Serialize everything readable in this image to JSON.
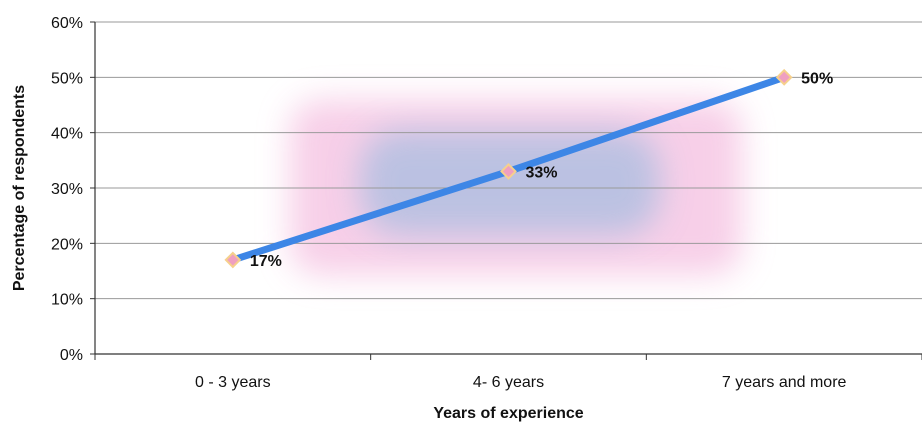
{
  "chart_data": {
    "type": "line",
    "categories": [
      "0 - 3 years",
      "4- 6 years",
      "7 years and more"
    ],
    "series": [
      {
        "values": [
          17,
          33,
          50
        ],
        "labels": [
          "17%",
          "33%",
          "50%"
        ]
      }
    ],
    "xlabel": "Years of experience",
    "ylabel": "Percentage of respondents",
    "ylim": [
      0,
      60
    ],
    "yticks": [
      "0%",
      "10%",
      "20%",
      "30%",
      "40%",
      "50%",
      "60%"
    ],
    "grid": true,
    "colors": {
      "line": "#3d86e6",
      "marker_fill": "#ef9fc0",
      "marker_edge": "#f6d08c",
      "grid": "#9a9a9a",
      "glow_outer": "#f6c7e4",
      "glow_inner": "#a7bde0"
    }
  }
}
